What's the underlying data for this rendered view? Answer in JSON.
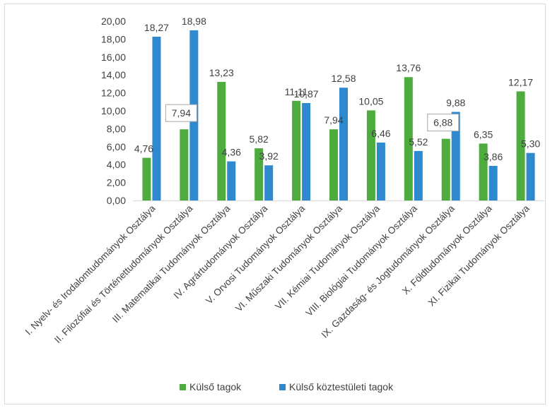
{
  "chart_data": {
    "type": "bar",
    "categories": [
      "I. Nyelv- és Irodalomtudományok Osztálya",
      "II. Filozófiai és Történettudományok Osztálya",
      "III. Matematikai Tudományok Osztálya",
      "IV. Agrártudományok Osztálya",
      "V. Orvosi Tudományok Osztálya",
      "VI. Műszaki Tudományok Osztálya",
      "VII. Kémiai Tudományok Osztálya",
      "VIII. Biológiai Tudományok Osztálya",
      "IX. Gazdaság- és Jogtudományok Osztálya",
      "X. Földtudományok Osztálya",
      "XI. Fizikai Tudományok Osztálya"
    ],
    "series": [
      {
        "name": "Külső tagok",
        "color": "#4eac3f",
        "values": [
          4.76,
          7.94,
          13.23,
          5.82,
          11.11,
          7.94,
          10.05,
          13.76,
          6.88,
          6.35,
          12.17
        ],
        "labels": [
          "4,76",
          "7,94",
          "13,23",
          "5,82",
          "11,11",
          "7,94",
          "10,05",
          "13,76",
          "6,88",
          "6,35",
          "12,17"
        ]
      },
      {
        "name": "Külső köztestületi tagok",
        "color": "#2e89cf",
        "values": [
          18.27,
          18.98,
          4.36,
          3.92,
          10.87,
          12.58,
          6.46,
          5.52,
          9.88,
          3.86,
          5.3
        ],
        "labels": [
          "18,27",
          "18,98",
          "4,36",
          "3,92",
          "10,87",
          "12,58",
          "6,46",
          "5,52",
          "9,88",
          "3,86",
          "5,30"
        ]
      }
    ],
    "ylim": [
      0,
      20
    ],
    "yticks": [
      "0,00",
      "2,00",
      "4,00",
      "6,00",
      "8,00",
      "10,00",
      "12,00",
      "14,00",
      "16,00",
      "18,00",
      "20,00"
    ],
    "grid": false,
    "legend": "bottom"
  }
}
